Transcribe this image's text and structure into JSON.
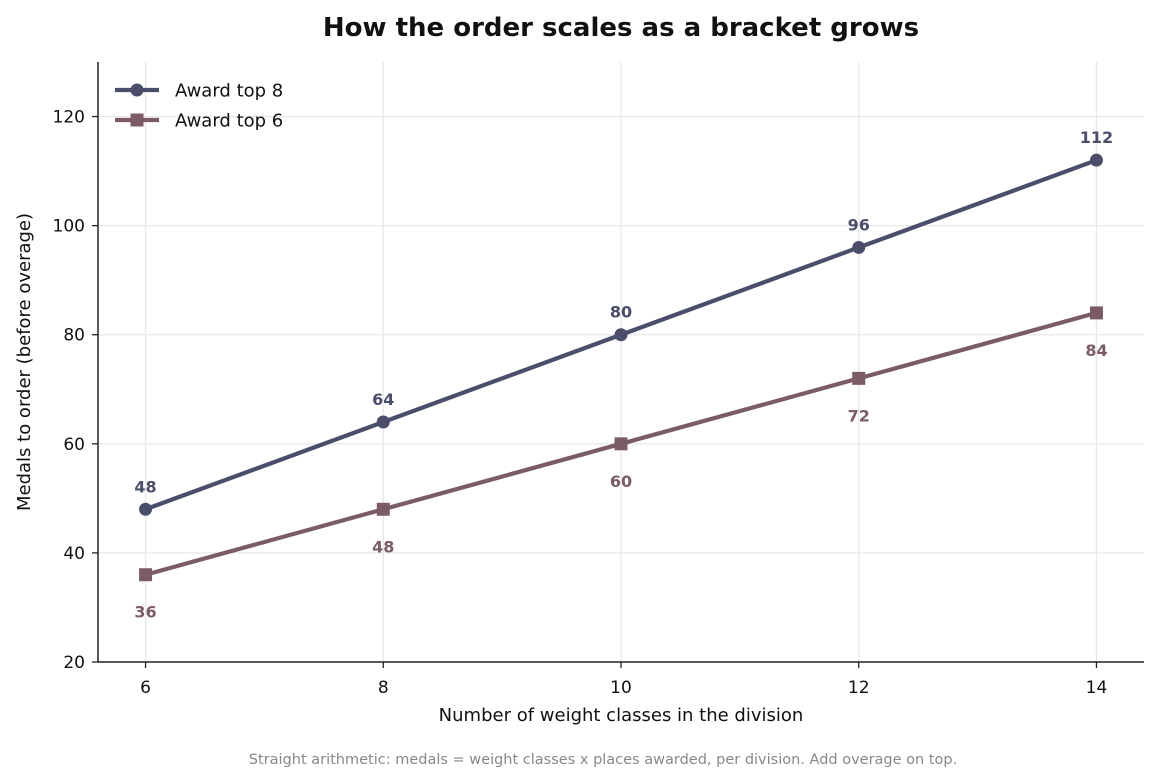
{
  "chart_data": {
    "type": "line",
    "title": "How the order scales as a bracket grows",
    "xlabel": "Number of weight classes in the division",
    "ylabel": "Medals to order (before overage)",
    "x": [
      6,
      8,
      10,
      12,
      14
    ],
    "xlim": [
      5.6,
      14.4
    ],
    "ylim": [
      20,
      130
    ],
    "xticks": [
      6,
      8,
      10,
      12,
      14
    ],
    "yticks": [
      20,
      40,
      60,
      80,
      100,
      120
    ],
    "grid": true,
    "legend_position": "top-left",
    "series": [
      {
        "name": "Award top 8",
        "values": [
          48,
          64,
          80,
          96,
          112
        ],
        "color": "#4a4e6b",
        "marker": "circle",
        "label_position": "above"
      },
      {
        "name": "Award top 6",
        "values": [
          36,
          48,
          60,
          72,
          84
        ],
        "color": "#7b5c66",
        "marker": "square",
        "label_position": "below"
      }
    ],
    "caption": "Straight arithmetic: medals = weight classes x places awarded, per division. Add overage on top."
  }
}
